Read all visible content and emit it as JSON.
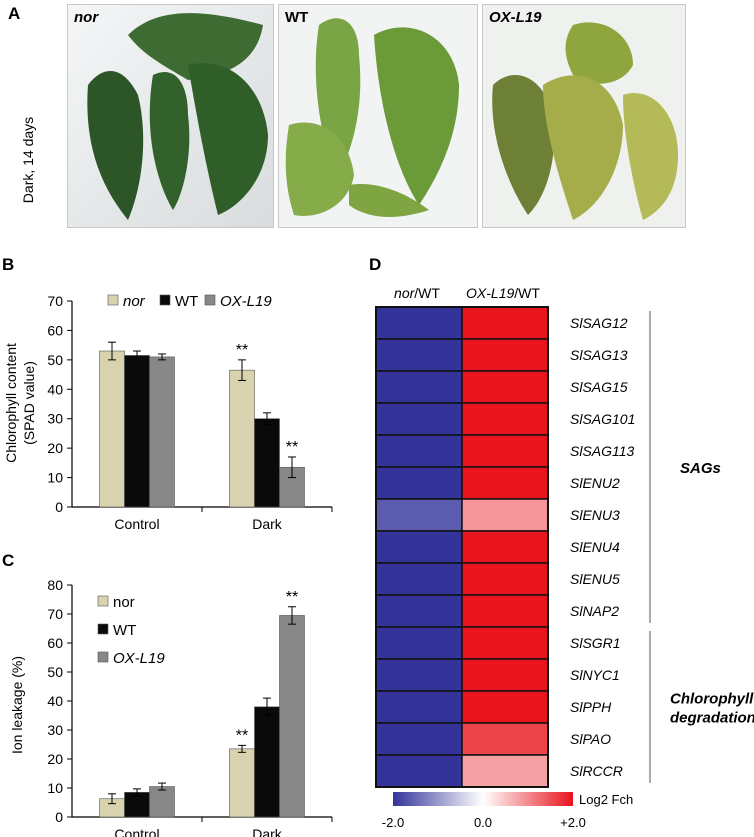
{
  "panels": {
    "a": "A",
    "b": "B",
    "c": "C",
    "d": "D"
  },
  "panel_a": {
    "side_label": "Dark, 14 days",
    "photos": [
      {
        "label": "nor",
        "italic": true,
        "leaf_color": "#2f5d27"
      },
      {
        "label": "WT",
        "italic": false,
        "leaf_color": "#6e9a3a"
      },
      {
        "label": "OX-L19",
        "italic": true,
        "leaf_color": "#8d9b45"
      }
    ]
  },
  "chart_data": [
    {
      "type": "bar",
      "panel": "B",
      "ylabel_lines": [
        "Chlorophyll content",
        "(SPAD value)"
      ],
      "categories": [
        "Control",
        "Dark"
      ],
      "ylim": [
        0,
        70
      ],
      "yticks": [
        0,
        10,
        20,
        30,
        40,
        50,
        60,
        70
      ],
      "legend": "top",
      "series": [
        {
          "name": "nor",
          "italic": true,
          "color": "#d8d3ae",
          "values": [
            53,
            46.5
          ],
          "errors": [
            3,
            3.5
          ],
          "stars": [
            "",
            "**"
          ]
        },
        {
          "name": "WT",
          "italic": false,
          "color": "#0a0a0a",
          "values": [
            51.5,
            30
          ],
          "errors": [
            1.5,
            2
          ],
          "stars": [
            "",
            ""
          ]
        },
        {
          "name": "OX-L19",
          "italic": true,
          "color": "#888888",
          "values": [
            51,
            13.5
          ],
          "errors": [
            1,
            3.5
          ],
          "stars": [
            "",
            "**"
          ]
        }
      ]
    },
    {
      "type": "bar",
      "panel": "C",
      "ylabel": "Ion leakage (%)",
      "categories": [
        "Control",
        "Dark"
      ],
      "ylim": [
        0,
        80
      ],
      "yticks": [
        0,
        10,
        20,
        30,
        40,
        50,
        60,
        70,
        80
      ],
      "legend": "top-left",
      "series": [
        {
          "name": "nor",
          "italic": false,
          "color": "#d8d3ae",
          "values": [
            6.3,
            23.5
          ],
          "errors": [
            1.7,
            1.2
          ],
          "stars": [
            "",
            "**"
          ]
        },
        {
          "name": "WT",
          "italic": false,
          "color": "#0a0a0a",
          "values": [
            8.5,
            38
          ],
          "errors": [
            1.2,
            3
          ],
          "stars": [
            "",
            ""
          ]
        },
        {
          "name": "OX-L19",
          "italic": true,
          "color": "#888888",
          "values": [
            10.5,
            69.5
          ],
          "errors": [
            1.2,
            3
          ],
          "stars": [
            "",
            "**"
          ]
        }
      ]
    },
    {
      "type": "heatmap",
      "panel": "D",
      "columns": [
        {
          "italic": "nor",
          "plain": "/WT"
        },
        {
          "italic": "OX-L19",
          "plain": "/WT"
        }
      ],
      "rows": [
        "SlSAG12",
        "SlSAG13",
        "SlSAG15",
        "SlSAG101",
        "SlSAG113",
        "SlENU2",
        "SlENU3",
        "SlENU4",
        "SlENU5",
        "SlNAP2",
        "SlSGR1",
        "SlNYC1",
        "SlPPH",
        "SlPAO",
        "SlRCCR"
      ],
      "values": [
        [
          -2.0,
          2.0
        ],
        [
          -2.0,
          2.0
        ],
        [
          -2.0,
          2.0
        ],
        [
          -2.0,
          2.0
        ],
        [
          -2.0,
          2.0
        ],
        [
          -2.0,
          2.0
        ],
        [
          -1.6,
          0.9
        ],
        [
          -2.0,
          2.0
        ],
        [
          -2.0,
          2.0
        ],
        [
          -2.0,
          2.0
        ],
        [
          -2.0,
          2.0
        ],
        [
          -2.0,
          2.0
        ],
        [
          -2.0,
          2.0
        ],
        [
          -2.0,
          1.6
        ],
        [
          -2.0,
          0.8
        ]
      ],
      "groups": [
        {
          "lines": [
            "SAGs"
          ],
          "from": 0,
          "to": 9
        },
        {
          "lines": [
            "Chlorophyll",
            "degradation"
          ],
          "from": 10,
          "to": 14
        }
      ],
      "colorbar": {
        "label": "Log2 Fch",
        "ticks": [
          "-2.0",
          "0.0",
          "+2.0"
        ],
        "min": -2.0,
        "max": 2.0,
        "low_color": "#33339a",
        "mid_color": "#ffffff",
        "high_color": "#e8141e"
      }
    }
  ]
}
